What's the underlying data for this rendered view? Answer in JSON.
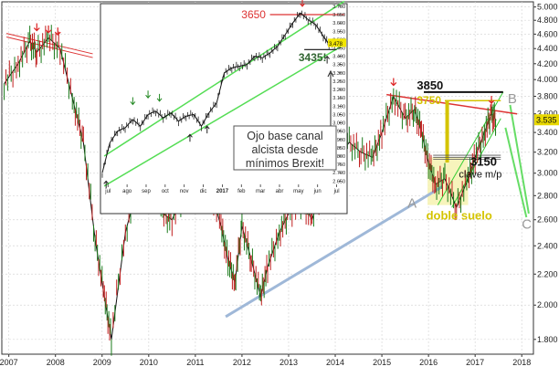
{
  "chart_data": [
    {
      "type": "line",
      "title": "",
      "xlabel": "",
      "ylabel": "",
      "x_ticks": [
        "2007",
        "2008",
        "2009",
        "2010",
        "2011",
        "2012",
        "2013",
        "2014",
        "2015",
        "2016",
        "2017",
        "2018"
      ],
      "x_range": [
        2006.85,
        2018.25
      ],
      "y_ticks": [
        "1.800",
        "2.000",
        "2.200",
        "2.400",
        "2.600",
        "2.800",
        "3.000",
        "3.200",
        "3.400",
        "3.600",
        "3.800",
        "4.000",
        "4.200",
        "4.400",
        "4.600",
        "4.800",
        "5.000"
      ],
      "y_range": [
        1720,
        5080
      ],
      "series": [
        {
          "name": "",
          "x": [
            2006.9,
            2007.2,
            2007.45,
            2007.6,
            2007.85,
            2008.1,
            2008.4,
            2008.6,
            2008.85,
            2009.05,
            2009.2,
            2009.5,
            2009.8,
            2010.0,
            2010.3,
            2010.5,
            2010.8,
            2011.05,
            2011.3,
            2011.55,
            2011.7,
            2011.85,
            2012.0,
            2012.2,
            2012.4,
            2012.55,
            2012.8,
            2013.0,
            2013.3,
            2013.5,
            2013.8,
            2014.0,
            2014.3,
            2014.55,
            2014.8,
            2015.0,
            2015.25,
            2015.5,
            2015.7,
            2015.85,
            2016.0,
            2016.15,
            2016.35,
            2016.6,
            2016.85,
            2017.0,
            2017.2,
            2017.35,
            2017.45
          ],
          "values": [
            3950,
            4200,
            4500,
            4350,
            4550,
            4400,
            3700,
            3300,
            2450,
            2050,
            1800,
            2500,
            2950,
            3000,
            2650,
            2600,
            2850,
            3050,
            2900,
            2550,
            2300,
            2150,
            2550,
            2300,
            2050,
            2250,
            2500,
            2650,
            2750,
            2600,
            2950,
            3100,
            3300,
            3200,
            3150,
            3400,
            3800,
            3550,
            3650,
            3400,
            3100,
            2900,
            2950,
            2700,
            2950,
            3150,
            3400,
            3600,
            3530
          ]
        }
      ],
      "last_value_label": "3.535",
      "annotations": {
        "level_3850": "3850",
        "level_3750": "3750",
        "level_3150": "3150",
        "level_3150_note": "clave m/p",
        "double_bottom": "doble suelo",
        "point_a": "A",
        "point_b": "B",
        "point_c": "C"
      }
    },
    {
      "type": "line",
      "title": "",
      "x_ticks": [
        "jul",
        "ago",
        "sep",
        "oct",
        "nov",
        "dic",
        "2017",
        "feb",
        "mar",
        "abr",
        "may",
        "jun",
        "jul"
      ],
      "x_range": [
        0,
        12.8
      ],
      "y_ticks": [
        "2.650",
        "2.700",
        "2.750",
        "2.800",
        "2.850",
        "2.900",
        "2.950",
        "3.000",
        "3.050",
        "3.100",
        "3.150",
        "3.200",
        "3.250",
        "3.300",
        "3.350",
        "3.400",
        "3.450",
        "3.500",
        "3.550",
        "3.600",
        "3.650",
        "3.700"
      ],
      "y_range": [
        2630,
        3705
      ],
      "series": [
        {
          "name": "",
          "x": [
            0.0,
            0.4,
            0.8,
            1.2,
            1.6,
            2.0,
            2.4,
            2.8,
            3.2,
            3.6,
            4.0,
            4.4,
            4.8,
            5.2,
            5.6,
            6.0,
            6.4,
            6.8,
            7.2,
            7.6,
            8.0,
            8.4,
            8.8,
            9.2,
            9.6,
            10.0,
            10.4,
            10.8,
            11.2,
            11.6,
            11.9,
            12.3
          ],
          "values": [
            2700,
            2880,
            2950,
            2970,
            3020,
            2980,
            3050,
            3070,
            3030,
            3060,
            3010,
            3040,
            3050,
            2980,
            3060,
            3120,
            3300,
            3330,
            3340,
            3350,
            3400,
            3390,
            3420,
            3460,
            3530,
            3600,
            3660,
            3620,
            3590,
            3520,
            3470,
            3480
          ]
        }
      ],
      "last_value_label": "3.478",
      "annotations": {
        "level_3650": "3650",
        "level_3435": "3435!",
        "callout": [
          "Ojo base canal",
          "alcista desde",
          "mínimos Brexit!"
        ]
      }
    }
  ]
}
